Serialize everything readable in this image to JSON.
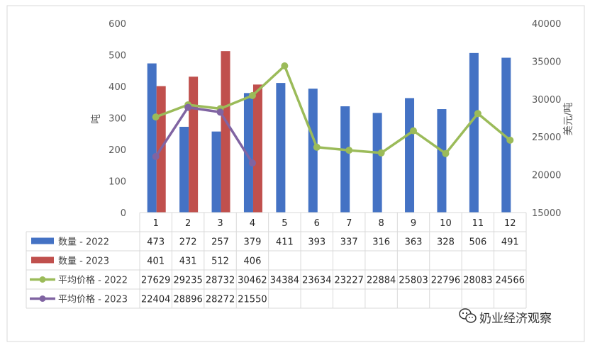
{
  "chart_data": {
    "type": "bar",
    "categories": [
      "1",
      "2",
      "3",
      "4",
      "5",
      "6",
      "7",
      "8",
      "9",
      "10",
      "11",
      "12"
    ],
    "series": [
      {
        "name": "数量 - 2022",
        "type": "bar",
        "axis": "left",
        "color": "#4472C4",
        "values": [
          473,
          272,
          257,
          379,
          411,
          393,
          337,
          316,
          363,
          328,
          506,
          491
        ]
      },
      {
        "name": "数量 - 2023",
        "type": "bar",
        "axis": "left",
        "color": "#C0504D",
        "values": [
          401,
          431,
          512,
          406,
          null,
          null,
          null,
          null,
          null,
          null,
          null,
          null
        ]
      },
      {
        "name": "平均价格 - 2022",
        "type": "line",
        "axis": "right",
        "color": "#9BBB59",
        "values": [
          27629,
          29235,
          28732,
          30462,
          34384,
          23634,
          23227,
          22884,
          25803,
          22796,
          28083,
          24566
        ]
      },
      {
        "name": "平均价格 - 2023",
        "type": "line",
        "axis": "right",
        "color": "#8064A2",
        "values": [
          22404,
          28896,
          28272,
          21550,
          null,
          null,
          null,
          null,
          null,
          null,
          null,
          null
        ]
      }
    ],
    "ylabel": "吨",
    "y2label": "美元/吨",
    "ylim": [
      0,
      600
    ],
    "yticks": [
      0,
      100,
      200,
      300,
      400,
      500,
      600
    ],
    "y2lim": [
      15000,
      40000
    ],
    "y2ticks": [
      15000,
      20000,
      25000,
      30000,
      35000,
      40000
    ],
    "grid": false,
    "legend": "data-table"
  },
  "watermark": {
    "text": "奶业经济观察",
    "icon": "wechat-icon"
  }
}
